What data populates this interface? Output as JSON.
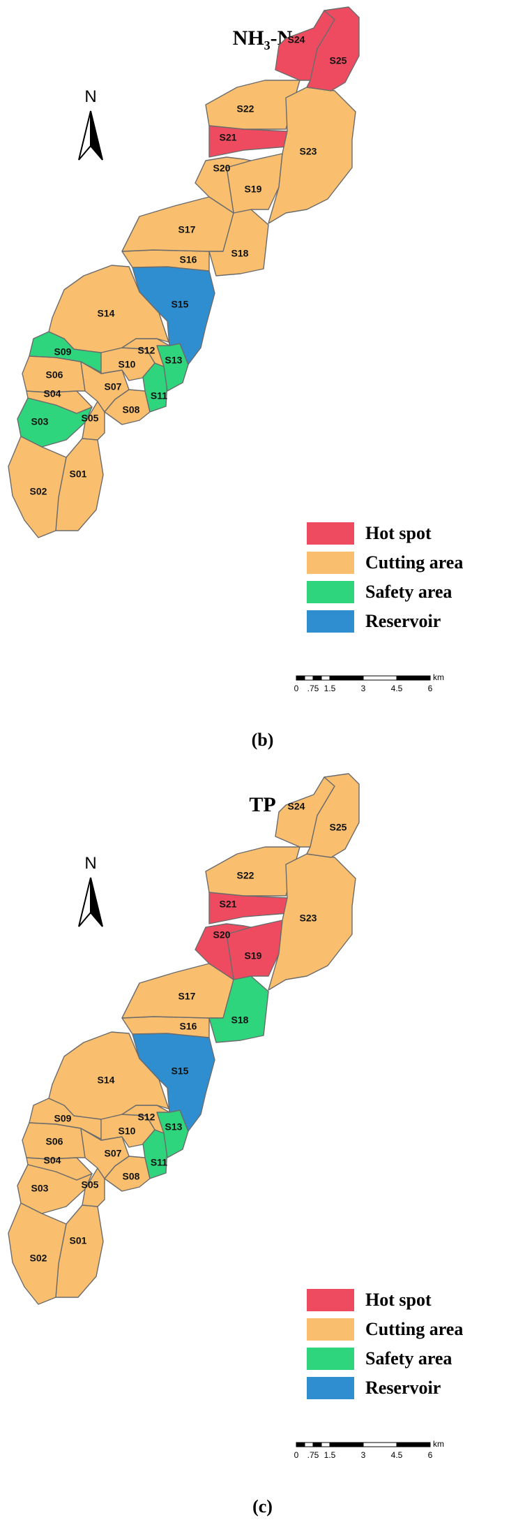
{
  "colors": {
    "hot_spot": "#ef4b60",
    "cutting_area": "#f9bf6f",
    "safety_area": "#2fd57d",
    "reservoir": "#2f8ed0",
    "border": "#6b6b6b"
  },
  "north_label": "N",
  "legend": [
    {
      "key": "hot_spot",
      "label": "Hot spot"
    },
    {
      "key": "cutting_area",
      "label": "Cutting area"
    },
    {
      "key": "safety_area",
      "label": "Safety area"
    },
    {
      "key": "reservoir",
      "label": "Reservoir"
    }
  ],
  "scale": {
    "unit": "km",
    "ticks": [
      "0",
      ".75",
      "1.5",
      "3",
      "4.5",
      "6"
    ]
  },
  "panels": [
    {
      "id": "b",
      "title_main": "NH",
      "title_sub": "3",
      "title_rest": "-N",
      "label": "(b)",
      "zones": {
        "S01": "cutting_area",
        "S02": "cutting_area",
        "S03": "safety_area",
        "S04": "cutting_area",
        "S05": "cutting_area",
        "S06": "cutting_area",
        "S07": "cutting_area",
        "S08": "cutting_area",
        "S09": "safety_area",
        "S10": "cutting_area",
        "S11": "safety_area",
        "S12": "cutting_area",
        "S13": "safety_area",
        "S14": "cutting_area",
        "S15": "reservoir",
        "S16": "cutting_area",
        "S17": "cutting_area",
        "S18": "cutting_area",
        "S19": "cutting_area",
        "S20": "cutting_area",
        "S21": "hot_spot",
        "S22": "cutting_area",
        "S23": "cutting_area",
        "S24": "hot_spot",
        "S25": "hot_spot"
      }
    },
    {
      "id": "c",
      "title_main": "TP",
      "title_sub": "",
      "title_rest": "",
      "label": "(c)",
      "zones": {
        "S01": "cutting_area",
        "S02": "cutting_area",
        "S03": "cutting_area",
        "S04": "cutting_area",
        "S05": "cutting_area",
        "S06": "cutting_area",
        "S07": "cutting_area",
        "S08": "cutting_area",
        "S09": "cutting_area",
        "S10": "cutting_area",
        "S11": "safety_area",
        "S12": "cutting_area",
        "S13": "safety_area",
        "S14": "cutting_area",
        "S15": "reservoir",
        "S16": "cutting_area",
        "S17": "cutting_area",
        "S18": "safety_area",
        "S19": "hot_spot",
        "S20": "hot_spot",
        "S21": "hot_spot",
        "S22": "cutting_area",
        "S23": "cutting_area",
        "S24": "cutting_area",
        "S25": "cutting_area"
      }
    }
  ]
}
